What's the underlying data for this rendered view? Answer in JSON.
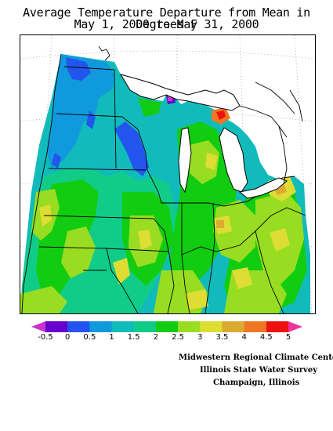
{
  "title": {
    "line1": "Average Temperature Departure from Mean in Degrees F",
    "line2": "May 1, 2000 to May 31, 2000"
  },
  "colorbar": {
    "tick_labels": [
      "-0.5",
      "0",
      "0.5",
      "1",
      "1.5",
      "2",
      "2.5",
      "3",
      "3.5",
      "4",
      "4.5",
      "5"
    ],
    "colors": [
      "#cc33cc",
      "#6600cc",
      "#2255ee",
      "#1199dd",
      "#11bbbb",
      "#11cc88",
      "#11cc11",
      "#99dd22",
      "#dddd33",
      "#ddaa33",
      "#ee7722",
      "#ee1111",
      "#ee3399"
    ]
  },
  "credits": {
    "line1": "Midwestern Regional Climate Center",
    "line2": "Illinois State Water Survey",
    "line3": "Champaign, Illinois"
  }
}
